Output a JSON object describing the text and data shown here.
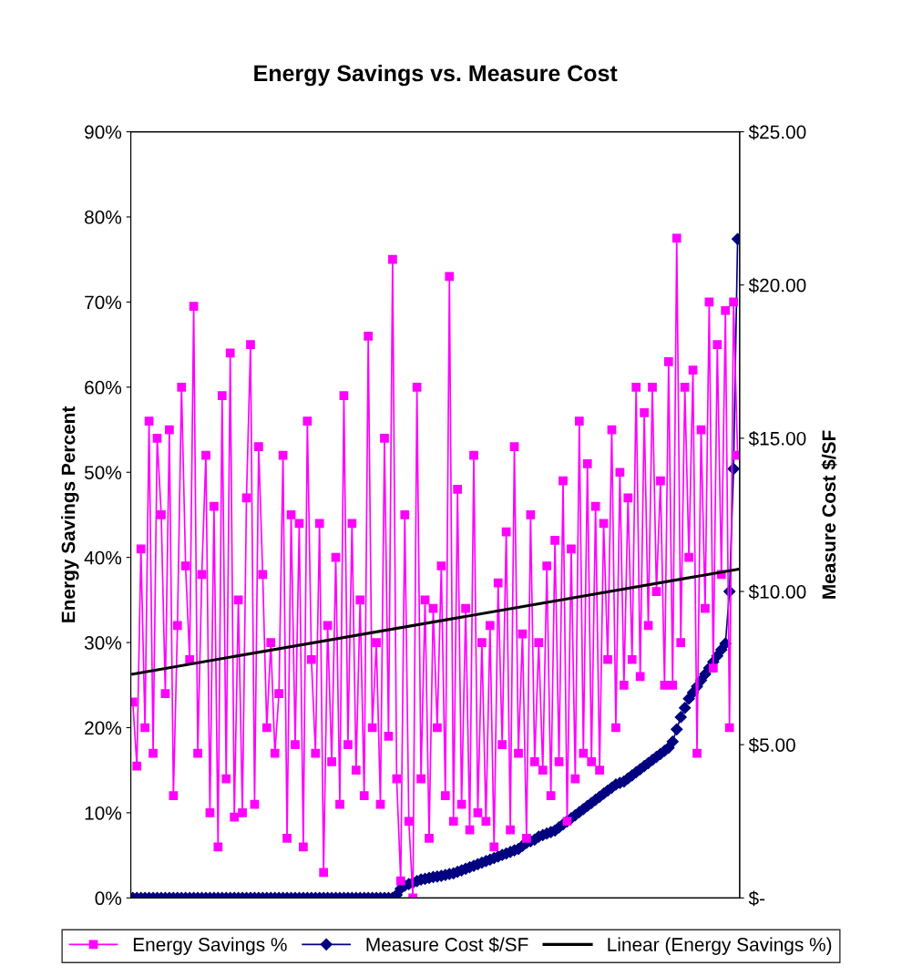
{
  "chart_data": {
    "type": "line",
    "title": "Energy Savings vs. Measure Cost",
    "ylabel": "Energy Savings Percent",
    "y2label": "Measure Cost $/SF",
    "categories": [
      null,
      null,
      null,
      null,
      null,
      null,
      null,
      null,
      null,
      null,
      null,
      null,
      null,
      null,
      null,
      null,
      null,
      null,
      null,
      null,
      null,
      null,
      null,
      null,
      null,
      null,
      null,
      null,
      null,
      null,
      null,
      null,
      null,
      null,
      null,
      null,
      null,
      null,
      null,
      null,
      null,
      null,
      null,
      null,
      null,
      null,
      null,
      null,
      null,
      null,
      null,
      null,
      null,
      null,
      null,
      null,
      null,
      null,
      null,
      null,
      null,
      null,
      null,
      null,
      null,
      null,
      null,
      null,
      null,
      null,
      null,
      null,
      null,
      null,
      null,
      null,
      null,
      null,
      null,
      null,
      null,
      null,
      null,
      null,
      null,
      null,
      null,
      null,
      null,
      null,
      null,
      null,
      null,
      null,
      null,
      null,
      null,
      null,
      null,
      null,
      null,
      null,
      null,
      null,
      null,
      null,
      null,
      null,
      null,
      null,
      null,
      null,
      null,
      null,
      null,
      null,
      null,
      null,
      null,
      null,
      null,
      null,
      null,
      null,
      null,
      null,
      null,
      null,
      null,
      null,
      null,
      null,
      null,
      null,
      null,
      null,
      null,
      null,
      null,
      null,
      null,
      null,
      null,
      null,
      null,
      null,
      null,
      null,
      null,
      null
    ],
    "series": [
      {
        "name": "Energy Savings %",
        "color": "#ff00ff",
        "marker": "square",
        "values": [
          23,
          15.5,
          41,
          20,
          56,
          17,
          54,
          45,
          24,
          55,
          12,
          32,
          60,
          39,
          28,
          69.5,
          17,
          38,
          52,
          10,
          46,
          6,
          59,
          14,
          64,
          9.5,
          35,
          10,
          47,
          65,
          11,
          53,
          38,
          20,
          30,
          17,
          24,
          52,
          7,
          45,
          18,
          44,
          6,
          56,
          28,
          17,
          44,
          3,
          32,
          16,
          40,
          11,
          59,
          18,
          44,
          15,
          35,
          12,
          66,
          20,
          30,
          11,
          54,
          19,
          75,
          14,
          2,
          45,
          9,
          0,
          60,
          14,
          35,
          7,
          34,
          20,
          39,
          12,
          73,
          9,
          48,
          11,
          34,
          8,
          52,
          10,
          30,
          9,
          32,
          6,
          37,
          18,
          43,
          8,
          53,
          17,
          31,
          7,
          45,
          16,
          30,
          15,
          39,
          12,
          42,
          16,
          49,
          9,
          41,
          14,
          56,
          17,
          51,
          16,
          46,
          15,
          44,
          28,
          55,
          20,
          50,
          25,
          47,
          28,
          60,
          26,
          57,
          32,
          60,
          36,
          49,
          25,
          63,
          25,
          77.5,
          30,
          60,
          40,
          62,
          17,
          55,
          34,
          70,
          27,
          65,
          38,
          69,
          20,
          70,
          52
        ]
      },
      {
        "name": "Measure Cost $/SF",
        "color": "#000080",
        "marker": "diamond",
        "axis": "y2",
        "values": [
          0,
          0,
          0,
          0,
          0,
          0,
          0,
          0,
          0,
          0,
          0,
          0,
          0,
          0,
          0,
          0,
          0,
          0,
          0,
          0,
          0,
          0,
          0,
          0,
          0,
          0,
          0,
          0,
          0,
          0,
          0,
          0,
          0,
          0,
          0,
          0,
          0,
          0,
          0,
          0,
          0,
          0,
          0,
          0,
          0,
          0,
          0,
          0,
          0,
          0,
          0,
          0,
          0,
          0,
          0,
          0,
          0,
          0,
          0,
          0,
          0,
          0,
          0,
          0,
          0,
          0.1,
          0.3,
          0.4,
          0.45,
          0.5,
          0.55,
          0.6,
          0.62,
          0.65,
          0.68,
          0.7,
          0.72,
          0.75,
          0.78,
          0.8,
          0.85,
          0.9,
          0.95,
          1.0,
          1.05,
          1.1,
          1.15,
          1.2,
          1.25,
          1.3,
          1.35,
          1.4,
          1.45,
          1.5,
          1.55,
          1.6,
          1.7,
          1.8,
          1.85,
          1.9,
          2.0,
          2.05,
          2.1,
          2.15,
          2.2,
          2.3,
          2.4,
          2.5,
          2.6,
          2.7,
          2.8,
          2.9,
          3.0,
          3.1,
          3.2,
          3.3,
          3.4,
          3.5,
          3.6,
          3.7,
          3.75,
          3.8,
          3.9,
          4.0,
          4.1,
          4.2,
          4.3,
          4.4,
          4.5,
          4.6,
          4.7,
          4.8,
          4.9,
          5.1,
          5.5,
          5.9,
          6.2,
          6.5,
          6.7,
          6.9,
          7.1,
          7.3,
          7.5,
          7.7,
          7.9,
          8.1,
          8.3,
          10,
          14,
          21.5
        ]
      },
      {
        "name": "Linear (Energy Savings %)",
        "color": "#000000",
        "marker": "none",
        "values": [
          26.3,
          null,
          null,
          null,
          null,
          null,
          null,
          null,
          null,
          null,
          null,
          null,
          null,
          null,
          null,
          null,
          null,
          null,
          null,
          null,
          null,
          null,
          null,
          null,
          null,
          null,
          null,
          null,
          null,
          null,
          null,
          null,
          null,
          null,
          null,
          null,
          null,
          null,
          null,
          null,
          null,
          null,
          null,
          null,
          null,
          null,
          null,
          null,
          null,
          null,
          null,
          null,
          null,
          null,
          null,
          null,
          null,
          null,
          null,
          null,
          null,
          null,
          null,
          null,
          null,
          null,
          null,
          null,
          null,
          null,
          null,
          null,
          null,
          null,
          null,
          null,
          null,
          null,
          null,
          null,
          null,
          null,
          null,
          null,
          null,
          null,
          null,
          null,
          null,
          null,
          null,
          null,
          null,
          null,
          null,
          null,
          null,
          null,
          null,
          null,
          null,
          null,
          null,
          null,
          null,
          null,
          null,
          null,
          null,
          null,
          null,
          null,
          null,
          null,
          null,
          null,
          null,
          null,
          null,
          null,
          null,
          null,
          null,
          null,
          null,
          null,
          null,
          null,
          null,
          null,
          null,
          null,
          null,
          null,
          null,
          null,
          null,
          null,
          null,
          null,
          null,
          null,
          null,
          null,
          null,
          null,
          null,
          null,
          null,
          38.6
        ]
      }
    ],
    "ylim": [
      0,
      90
    ],
    "yticks": [
      {
        "value": 0,
        "label": "0%"
      },
      {
        "value": 10,
        "label": "10%"
      },
      {
        "value": 20,
        "label": "20%"
      },
      {
        "value": 30,
        "label": "30%"
      },
      {
        "value": 40,
        "label": "40%"
      },
      {
        "value": 50,
        "label": "50%"
      },
      {
        "value": 60,
        "label": "60%"
      },
      {
        "value": 70,
        "label": "70%"
      },
      {
        "value": 80,
        "label": "80%"
      },
      {
        "value": 90,
        "label": "90%"
      }
    ],
    "y2lim": [
      0,
      25
    ],
    "y2ticks": [
      {
        "value": 0,
        "label": "$-"
      },
      {
        "value": 5,
        "label": "$5.00"
      },
      {
        "value": 10,
        "label": "$10.00"
      },
      {
        "value": 15,
        "label": "$15.00"
      },
      {
        "value": 20,
        "label": "$20.00"
      },
      {
        "value": 25,
        "label": "$25.00"
      }
    ],
    "grid": false,
    "legend": "bottom",
    "line_style": "solid"
  }
}
